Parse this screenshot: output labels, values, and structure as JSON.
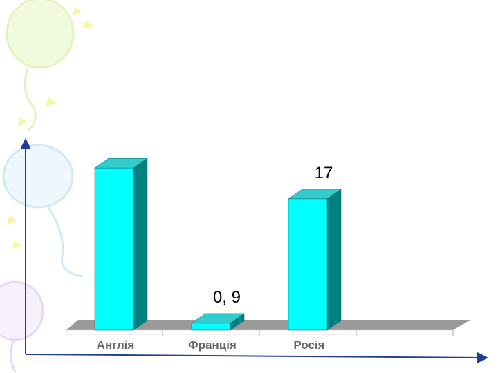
{
  "colors": {
    "bar_front": "#00ffff",
    "bar_side": "#008080",
    "bar_top": "#33cccc",
    "floor": "#999999",
    "axis": "#1f3f9a",
    "category_text": "#666666",
    "value_text": "#000000"
  },
  "chart_data": {
    "type": "bar",
    "categories": [
      "Англія",
      "Франція",
      "Росія"
    ],
    "values": [
      21,
      0.9,
      17
    ],
    "data_labels": [
      "",
      "0, 9",
      "17"
    ],
    "ylim": [
      0,
      22
    ],
    "title": "",
    "xlabel": "",
    "ylabel": "",
    "grid": false,
    "legend": "none"
  }
}
